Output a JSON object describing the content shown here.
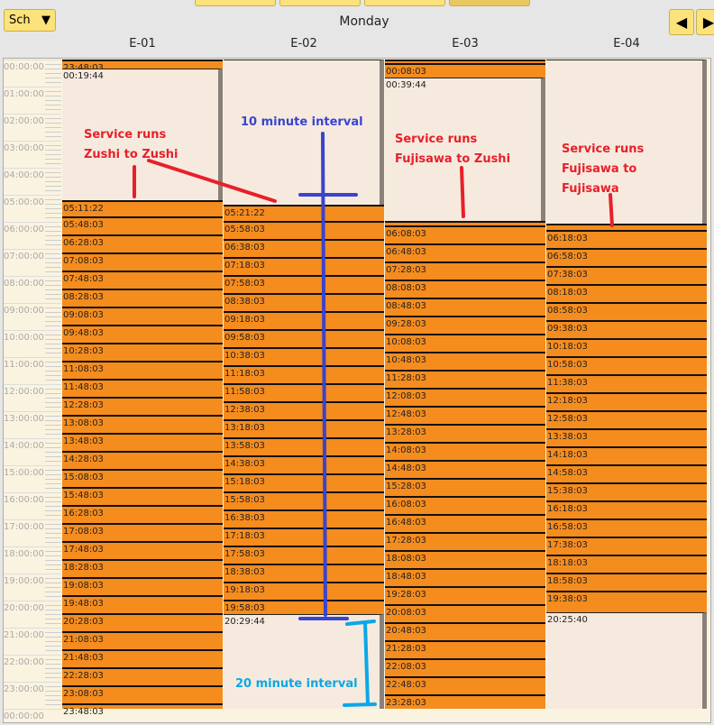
{
  "toolbar": {
    "schedule_select": "Sch",
    "day": "Monday",
    "prev_icon": "triangle-left-icon",
    "next_icon": "triangle-right-icon"
  },
  "columns": [
    {
      "name": "E-01",
      "segments": [
        {
          "t": "23:48:03",
          "start": "00:00:00",
          "type": "trip"
        },
        {
          "t": "00:19:44",
          "type": "idle"
        },
        {
          "t": "05:11:22",
          "type": "trip"
        },
        {
          "t": "05:48:03"
        },
        {
          "t": "06:28:03"
        },
        {
          "t": "07:08:03"
        },
        {
          "t": "07:48:03"
        },
        {
          "t": "08:28:03"
        },
        {
          "t": "09:08:03"
        },
        {
          "t": "09:48:03"
        },
        {
          "t": "10:28:03"
        },
        {
          "t": "11:08:03"
        },
        {
          "t": "11:48:03"
        },
        {
          "t": "12:28:03"
        },
        {
          "t": "13:08:03"
        },
        {
          "t": "13:48:03"
        },
        {
          "t": "14:28:03"
        },
        {
          "t": "15:08:03"
        },
        {
          "t": "15:48:03"
        },
        {
          "t": "16:28:03"
        },
        {
          "t": "17:08:03"
        },
        {
          "t": "17:48:03"
        },
        {
          "t": "18:28:03"
        },
        {
          "t": "19:08:03"
        },
        {
          "t": "19:48:03"
        },
        {
          "t": "20:28:03"
        },
        {
          "t": "21:08:03"
        },
        {
          "t": "21:48:03"
        },
        {
          "t": "22:28:03"
        },
        {
          "t": "23:08:03"
        },
        {
          "t": "23:48:03"
        }
      ]
    },
    {
      "name": "E-02",
      "segments": [
        {
          "t": "",
          "start": "00:00:00",
          "type": "idle"
        },
        {
          "t": "05:21:22",
          "type": "trip"
        },
        {
          "t": "05:58:03"
        },
        {
          "t": "06:38:03"
        },
        {
          "t": "07:18:03"
        },
        {
          "t": "07:58:03"
        },
        {
          "t": "08:38:03"
        },
        {
          "t": "09:18:03"
        },
        {
          "t": "09:58:03"
        },
        {
          "t": "10:38:03"
        },
        {
          "t": "11:18:03"
        },
        {
          "t": "11:58:03"
        },
        {
          "t": "12:38:03"
        },
        {
          "t": "13:18:03"
        },
        {
          "t": "13:58:03"
        },
        {
          "t": "14:38:03"
        },
        {
          "t": "15:18:03"
        },
        {
          "t": "15:58:03"
        },
        {
          "t": "16:38:03"
        },
        {
          "t": "17:18:03"
        },
        {
          "t": "17:58:03"
        },
        {
          "t": "18:38:03"
        },
        {
          "t": "19:18:03"
        },
        {
          "t": "19:58:03"
        },
        {
          "t": "20:29:44",
          "type": "idle"
        }
      ]
    },
    {
      "name": "E-03",
      "segments": [
        {
          "t": "",
          "start": "00:00:00",
          "type": "trip"
        },
        {
          "t": "00:08:03",
          "type": "trip"
        },
        {
          "t": "00:39:44",
          "type": "idle"
        },
        {
          "t": "",
          "start": "05:58:00",
          "type": "trip"
        },
        {
          "t": "06:08:03"
        },
        {
          "t": "06:48:03"
        },
        {
          "t": "07:28:03"
        },
        {
          "t": "08:08:03"
        },
        {
          "t": "08:48:03"
        },
        {
          "t": "09:28:03"
        },
        {
          "t": "10:08:03"
        },
        {
          "t": "10:48:03"
        },
        {
          "t": "11:28:03"
        },
        {
          "t": "12:08:03"
        },
        {
          "t": "12:48:03"
        },
        {
          "t": "13:28:03"
        },
        {
          "t": "14:08:03"
        },
        {
          "t": "14:48:03"
        },
        {
          "t": "15:28:03"
        },
        {
          "t": "16:08:03"
        },
        {
          "t": "16:48:03"
        },
        {
          "t": "17:28:03"
        },
        {
          "t": "18:08:03"
        },
        {
          "t": "18:48:03"
        },
        {
          "t": "19:28:03"
        },
        {
          "t": "20:08:03"
        },
        {
          "t": "20:48:03"
        },
        {
          "t": "21:28:03"
        },
        {
          "t": "22:08:03"
        },
        {
          "t": "22:48:03"
        },
        {
          "t": "23:28:03"
        }
      ]
    },
    {
      "name": "E-04",
      "segments": [
        {
          "t": "",
          "start": "00:00:00",
          "type": "idle"
        },
        {
          "t": "",
          "start": "06:04:00",
          "type": "trip"
        },
        {
          "t": "06:18:03"
        },
        {
          "t": "06:58:03"
        },
        {
          "t": "07:38:03"
        },
        {
          "t": "08:18:03"
        },
        {
          "t": "08:58:03"
        },
        {
          "t": "09:38:03"
        },
        {
          "t": "10:18:03"
        },
        {
          "t": "10:58:03"
        },
        {
          "t": "11:38:03"
        },
        {
          "t": "12:18:03"
        },
        {
          "t": "12:58:03"
        },
        {
          "t": "13:38:03"
        },
        {
          "t": "14:18:03"
        },
        {
          "t": "14:58:03"
        },
        {
          "t": "15:38:03"
        },
        {
          "t": "16:18:03"
        },
        {
          "t": "16:58:03"
        },
        {
          "t": "17:38:03"
        },
        {
          "t": "18:18:03"
        },
        {
          "t": "18:58:03"
        },
        {
          "t": "19:38:03"
        },
        {
          "t": "20:25:40",
          "type": "idle"
        }
      ]
    }
  ],
  "hours": [
    "00:00:00",
    "01:00:00",
    "02:00:00",
    "03:00:00",
    "04:00:00",
    "05:00:00",
    "06:00:00",
    "07:00:00",
    "08:00:00",
    "09:00:00",
    "10:00:00",
    "11:00:00",
    "12:00:00",
    "13:00:00",
    "14:00:00",
    "15:00:00",
    "16:00:00",
    "17:00:00",
    "18:00:00",
    "19:00:00",
    "20:00:00",
    "21:00:00",
    "22:00:00",
    "23:00:00",
    "00:00:00"
  ],
  "annotations": {
    "e01": [
      "Service runs",
      "Zushi to Zushi"
    ],
    "e03": [
      "Service runs",
      "Fujisawa to Zushi"
    ],
    "e04": [
      "Service runs",
      "Fujisawa to",
      "Fujisawa"
    ],
    "ten": "10 minute interval",
    "twenty": "20 minute interval",
    "colors": {
      "red": "#e8202a",
      "blue": "#3a44cc",
      "cyan": "#0aa8e6"
    }
  },
  "colors": {
    "trip": "#f58c1e",
    "idle": "#f6eadf",
    "button": "#fbe27a"
  }
}
